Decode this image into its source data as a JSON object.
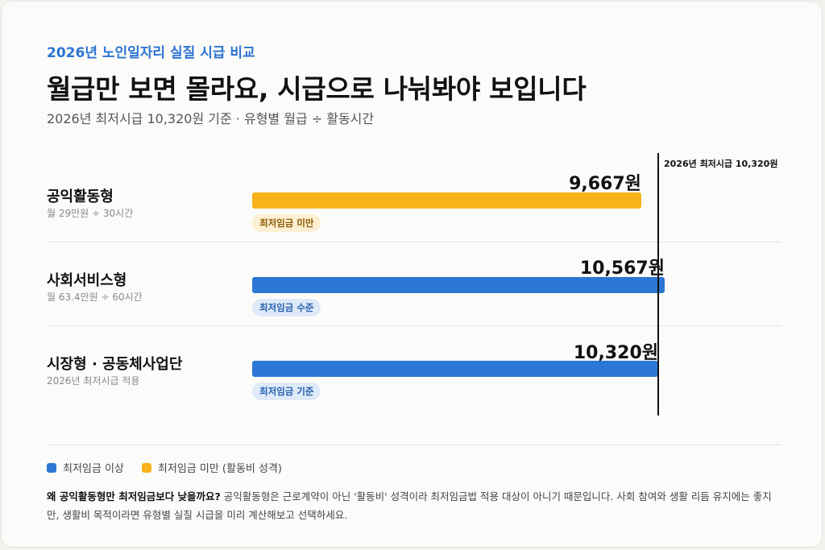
{
  "header": {
    "eyebrow": "2026년 노인일자리 실질 시급 비교",
    "title": "월급만 보면 몰라요, 시급으로 나눠봐야 보입니다",
    "subtitle": "2026년 최저시급 10,320원 기준 · 유형별 월급 ÷ 활동시간"
  },
  "colors": {
    "above": "#2c77d6",
    "below": "#f8b31a"
  },
  "chart_data": {
    "type": "bar",
    "orientation": "horizontal",
    "categories": [
      "공익활동형",
      "사회서비스형",
      "시장형 · 공동체사업단"
    ],
    "values": [
      9667,
      10567,
      10320
    ],
    "value_labels": [
      "9,667원",
      "10,567원",
      "10,320원"
    ],
    "category_notes": [
      "월 29만원 ÷ 30시간",
      "월 63.4만원 ÷ 60시간",
      "2026년 최저시급 적용"
    ],
    "badges": [
      "최저임금 미만",
      "최저임금 수준",
      "최저임금 기준"
    ],
    "status": [
      "below",
      "above",
      "above"
    ],
    "reference_line": {
      "value": 10320,
      "label": "2026년 최저시급 10,320원"
    },
    "xlim": [
      0,
      10320
    ],
    "legend": {
      "position": "bottom-left",
      "items": [
        {
          "label": "최저임금 이상",
          "color": "#2c77d6"
        },
        {
          "label": "최저임금 미만 (활동비 성격)",
          "color": "#f8b31a"
        }
      ]
    }
  },
  "note": {
    "question": "왜 공익활동형만 최저임금보다 낮을까요?",
    "answer": "공익활동형은 근로계약이 아닌 '활동비' 성격이라 최저임금법 적용 대상이 아니기 때문입니다. 사회 참여와 생활 리듬 유지에는 좋지만, 생활비 목적이라면 유형별 실질 시급을 미리 계산해보고 선택하세요."
  }
}
